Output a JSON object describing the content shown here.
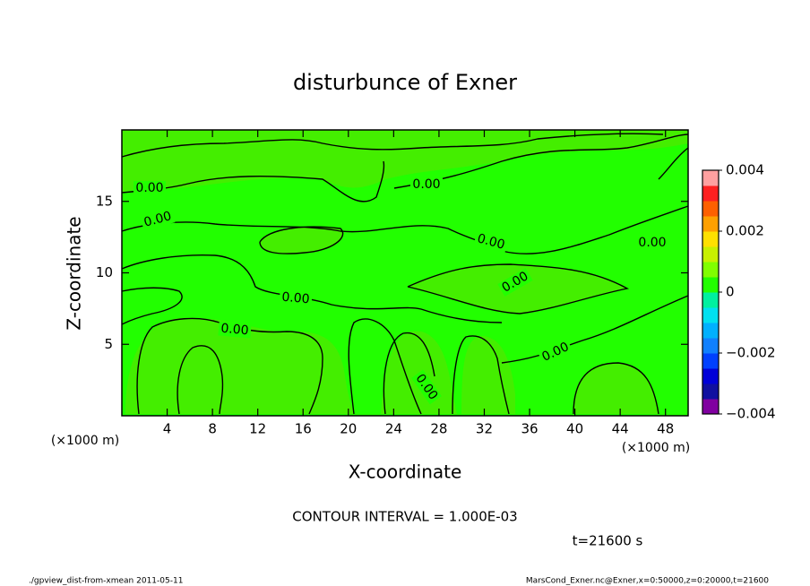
{
  "chart_data": {
    "type": "contour",
    "title": "disturbunce of Exner",
    "xlabel": "X-coordinate",
    "ylabel": "Z-coordinate",
    "axis_unit": "(×1000 m)",
    "xlim": [
      0,
      50
    ],
    "xticks": [
      4,
      8,
      12,
      16,
      20,
      24,
      28,
      32,
      36,
      40,
      44,
      48
    ],
    "ylim": [
      0,
      20
    ],
    "yticks": [
      5,
      10,
      15
    ],
    "plot_color": "#22ff00",
    "region_color": "#44ee00",
    "contour_level": {
      "value": 0,
      "label": "0.00"
    },
    "colorbar": {
      "lim": [
        -0.004,
        0.004
      ],
      "ticks": [
        {
          "value": 0.004,
          "label": "0.004"
        },
        {
          "value": 0.002,
          "label": "0.002"
        },
        0,
        {
          "value": -0.002,
          "label": "−0.002"
        },
        {
          "value": -0.004,
          "label": "−0.004"
        }
      ],
      "colors": [
        "#8000a0",
        "#1010a0",
        "#0000d8",
        "#0040ff",
        "#1080ff",
        "#00b0ff",
        "#00e0f0",
        "#00f0a0",
        "#22ff00",
        "#80ff00",
        "#c8f000",
        "#ffe000",
        "#ffa000",
        "#ff6000",
        "#ff2020",
        "#ffa0a0"
      ]
    },
    "annotations": [
      "CONTOUR INTERVAL = 1.000E-03",
      "t=21600 s",
      "./gpview_dist-from-xmean  2011-05-11",
      "MarsCond_Exner.nc@Exner,x=0:50000,z=0:20000,t=21600"
    ]
  }
}
